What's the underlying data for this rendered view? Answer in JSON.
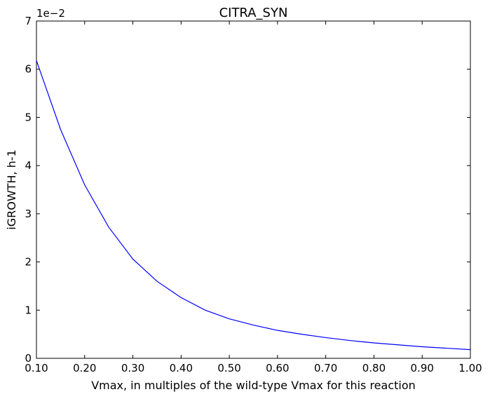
{
  "chart_data": {
    "type": "line",
    "title": "CITRA_SYN",
    "xlabel": "Vmax, in multiples of the wild-type Vmax for this reaction",
    "ylabel": "iGROWTH, h-1",
    "y_offset_label": "1e−2",
    "xlim": [
      0.1,
      1.0
    ],
    "ylim": [
      0,
      7
    ],
    "x_ticks": [
      0.1,
      0.2,
      0.3,
      0.4,
      0.5,
      0.6,
      0.7,
      0.8,
      0.9,
      1.0
    ],
    "x_tick_labels": [
      "0.10",
      "0.20",
      "0.30",
      "0.40",
      "0.50",
      "0.60",
      "0.70",
      "0.80",
      "0.90",
      "1.00"
    ],
    "y_ticks": [
      0,
      1,
      2,
      3,
      4,
      5,
      6,
      7
    ],
    "y_tick_labels": [
      "0",
      "1",
      "2",
      "3",
      "4",
      "5",
      "6",
      "7"
    ],
    "grid": false,
    "legend": "none",
    "series": [
      {
        "color": "#0000ff",
        "x": [
          0.1,
          0.15,
          0.2,
          0.25,
          0.3,
          0.35,
          0.4,
          0.45,
          0.5,
          0.55,
          0.6,
          0.65,
          0.7,
          0.75,
          0.8,
          0.85,
          0.9,
          0.95,
          1.0
        ],
        "y": [
          6.18,
          4.75,
          3.6,
          2.72,
          2.06,
          1.6,
          1.26,
          1.0,
          0.82,
          0.69,
          0.58,
          0.5,
          0.43,
          0.37,
          0.32,
          0.28,
          0.24,
          0.21,
          0.18
        ]
      }
    ]
  }
}
